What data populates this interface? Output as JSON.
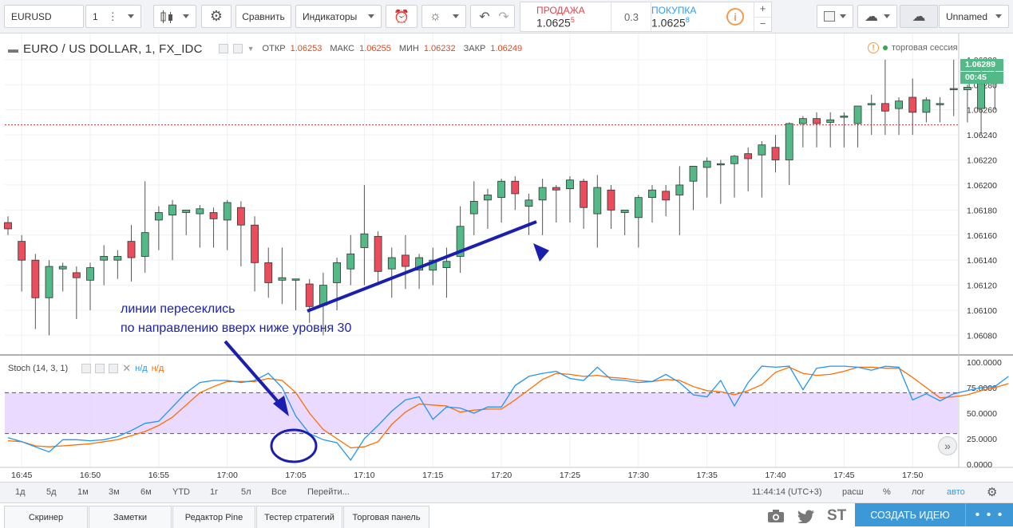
{
  "toolbar": {
    "symbol": "EURUSD",
    "interval": "1",
    "compare_label": "Сравнить",
    "indicators_label": "Индикаторы",
    "layout_name": "Unnamed"
  },
  "trade": {
    "sell_label": "ПРОДАЖА",
    "sell_price": "1.0625",
    "sell_sup": "5",
    "spread": "0.3",
    "buy_label": "ПОКУПКА",
    "buy_price": "1.0625",
    "buy_sup": "8",
    "colors": {
      "sell": "#e5434a",
      "buy": "#2a9df4"
    }
  },
  "legend": {
    "title": "EURO / US DOLLAR, 1, FX_IDC",
    "open_label": "ОТКР",
    "open": "1.06253",
    "high_label": "МАКС",
    "high": "1.06255",
    "low_label": "МИН",
    "low": "1.06232",
    "close_label": "ЗАКР",
    "close": "1.06249",
    "session_label": "торговая сессия"
  },
  "price_axis": {
    "ticks": [
      "1.06300",
      "1.06280",
      "1.06260",
      "1.06240",
      "1.06220",
      "1.06200",
      "1.06180",
      "1.06160",
      "1.06140",
      "1.06120",
      "1.06100",
      "1.06080"
    ],
    "last_price": "1.06289",
    "countdown": "00:45"
  },
  "stoch": {
    "name": "Stoch (14, 3, 1)",
    "k_value": "н/д",
    "d_value": "н/д",
    "ticks": [
      "100.0000",
      "75.0000",
      "50.0000",
      "25.0000",
      "0.0000"
    ]
  },
  "time_axis": {
    "ticks": [
      "16:45",
      "16:50",
      "16:55",
      "17:00",
      "17:05",
      "17:10",
      "17:15",
      "17:20",
      "17:25",
      "17:30",
      "17:35",
      "17:40",
      "17:45",
      "17:50"
    ]
  },
  "annotation": {
    "line1": "линии пересеклись",
    "line2": "по направлению вверх ниже уровня 30"
  },
  "range_bar": {
    "ranges": [
      "1д",
      "5д",
      "1м",
      "3м",
      "6м",
      "YTD",
      "1г",
      "5л",
      "Все"
    ],
    "goto": "Перейти...",
    "clock": "11:44:14 (UTC+3)",
    "options": [
      "расш",
      "%",
      "лог",
      "авто"
    ]
  },
  "bottom": {
    "tabs": [
      "Скринер",
      "Заметки",
      "Редактор Pine",
      "Тестер стратегий",
      "Торговая панель"
    ],
    "st": "ST",
    "create_idea": "СОЗДАТЬ ИДЕЮ",
    "more": "• • •"
  },
  "chart_data": {
    "type": "candlestick",
    "x_start": "16:44",
    "interval_minutes": 1,
    "candles": [
      [
        1.0617,
        1.06175,
        1.0616,
        1.06165
      ],
      [
        1.06155,
        1.0616,
        1.06115,
        1.0614
      ],
      [
        1.0614,
        1.06145,
        1.06085,
        1.0611
      ],
      [
        1.0611,
        1.0614,
        1.0608,
        1.06135
      ],
      [
        1.06133,
        1.06138,
        1.06115,
        1.06135
      ],
      [
        1.0613,
        1.06135,
        1.06093,
        1.06126
      ],
      [
        1.06124,
        1.06138,
        1.061,
        1.06134
      ],
      [
        1.0614,
        1.06152,
        1.0612,
        1.06143
      ],
      [
        1.0614,
        1.06148,
        1.06125,
        1.06143
      ],
      [
        1.06155,
        1.06168,
        1.06123,
        1.06142
      ],
      [
        1.06143,
        1.06203,
        1.0613,
        1.06162
      ],
      [
        1.06172,
        1.06183,
        1.06148,
        1.06178
      ],
      [
        1.06176,
        1.06188,
        1.0614,
        1.06184
      ],
      [
        1.06178,
        1.0618,
        1.0616,
        1.0618
      ],
      [
        1.06177,
        1.06184,
        1.0615,
        1.06181
      ],
      [
        1.06178,
        1.06182,
        1.0615,
        1.06173
      ],
      [
        1.06172,
        1.06188,
        1.06148,
        1.06186
      ],
      [
        1.06182,
        1.06187,
        1.06135,
        1.06168
      ],
      [
        1.06168,
        1.06175,
        1.06115,
        1.06138
      ],
      [
        1.06138,
        1.0615,
        1.0611,
        1.06122
      ],
      [
        1.06124,
        1.0615,
        1.06105,
        1.06126
      ],
      [
        1.06124,
        1.06125,
        1.061,
        1.06125
      ],
      [
        1.06121,
        1.06125,
        1.0609,
        1.06103
      ],
      [
        1.06104,
        1.0613,
        1.0608,
        1.0612
      ],
      [
        1.06122,
        1.06142,
        1.061,
        1.06138
      ],
      [
        1.06133,
        1.0616,
        1.0612,
        1.06145
      ],
      [
        1.0615,
        1.062,
        1.0612,
        1.06161
      ],
      [
        1.06159,
        1.06163,
        1.0612,
        1.06131
      ],
      [
        1.06133,
        1.0615,
        1.0611,
        1.06142
      ],
      [
        1.06144,
        1.0616,
        1.06117,
        1.06135
      ],
      [
        1.06132,
        1.06145,
        1.06117,
        1.06142
      ],
      [
        1.06132,
        1.0615,
        1.0612,
        1.0614
      ],
      [
        1.06134,
        1.0615,
        1.0611,
        1.06139
      ],
      [
        1.06143,
        1.06183,
        1.0613,
        1.06167
      ],
      [
        1.06177,
        1.06203,
        1.0616,
        1.06187
      ],
      [
        1.06188,
        1.06197,
        1.06165,
        1.06192
      ],
      [
        1.0619,
        1.06205,
        1.0617,
        1.06203
      ],
      [
        1.06203,
        1.06207,
        1.0618,
        1.06193
      ],
      [
        1.06183,
        1.06193,
        1.0616,
        1.06188
      ],
      [
        1.06188,
        1.06205,
        1.0616,
        1.06198
      ],
      [
        1.06198,
        1.062,
        1.0617,
        1.06196
      ],
      [
        1.06197,
        1.06207,
        1.0617,
        1.06204
      ],
      [
        1.06203,
        1.06205,
        1.06165,
        1.06182
      ],
      [
        1.06177,
        1.06208,
        1.0615,
        1.06198
      ],
      [
        1.06196,
        1.062,
        1.06165,
        1.0618
      ],
      [
        1.06178,
        1.0618,
        1.0616,
        1.0618
      ],
      [
        1.06174,
        1.06192,
        1.0615,
        1.0619
      ],
      [
        1.0619,
        1.062,
        1.0617,
        1.06196
      ],
      [
        1.06195,
        1.062,
        1.06175,
        1.06188
      ],
      [
        1.06192,
        1.06215,
        1.0616,
        1.062
      ],
      [
        1.06203,
        1.06215,
        1.0618,
        1.06215
      ],
      [
        1.06214,
        1.06222,
        1.0619,
        1.06219
      ],
      [
        1.06216,
        1.0622,
        1.06185,
        1.06217
      ],
      [
        1.06217,
        1.06224,
        1.0619,
        1.06223
      ],
      [
        1.06225,
        1.0623,
        1.06195,
        1.06221
      ],
      [
        1.06224,
        1.06235,
        1.0619,
        1.06232
      ],
      [
        1.0623,
        1.0624,
        1.0621,
        1.0622
      ],
      [
        1.0622,
        1.0625,
        1.062,
        1.06249
      ],
      [
        1.06249,
        1.06255,
        1.0623,
        1.06253
      ],
      [
        1.06253,
        1.06258,
        1.0623,
        1.06249
      ],
      [
        1.0625,
        1.06258,
        1.0623,
        1.06252
      ],
      [
        1.06254,
        1.06258,
        1.0623,
        1.06255
      ],
      [
        1.06249,
        1.06262,
        1.0623,
        1.06263
      ],
      [
        1.06264,
        1.06272,
        1.0624,
        1.06265
      ],
      [
        1.06265,
        1.063,
        1.0624,
        1.06259
      ],
      [
        1.06261,
        1.0627,
        1.0624,
        1.06267
      ],
      [
        1.0627,
        1.06285,
        1.0624,
        1.06258
      ],
      [
        1.06258,
        1.0627,
        1.0625,
        1.06268
      ],
      [
        1.06265,
        1.0627,
        1.0625,
        1.06265
      ],
      [
        1.06276,
        1.063,
        1.06255,
        1.06277
      ],
      [
        1.06276,
        1.0628,
        1.0625,
        1.06278
      ],
      [
        1.06261,
        1.063,
        1.0624,
        1.06281
      ],
      [
        1.06281,
        1.06295,
        1.0626,
        1.06289
      ]
    ],
    "stoch_k": [
      26,
      22,
      17,
      12,
      24,
      24,
      23,
      24,
      27,
      33,
      40,
      42,
      56,
      70,
      80,
      82,
      82,
      80,
      82,
      89,
      75,
      47,
      30,
      24,
      21,
      4,
      25,
      38,
      52,
      63,
      66,
      44,
      56,
      55,
      50,
      56,
      56,
      77,
      86,
      89,
      91,
      84,
      82,
      95,
      83,
      82,
      80,
      81,
      88,
      80,
      68,
      66,
      82,
      57,
      80,
      96,
      95,
      96,
      73,
      94,
      96,
      96,
      95,
      92,
      96,
      95,
      63,
      69,
      62,
      69,
      72,
      75,
      76,
      86
    ],
    "stoch_d": [
      23,
      22,
      18,
      17,
      18,
      19,
      20,
      22,
      24,
      28,
      32,
      38,
      46,
      58,
      70,
      76,
      81,
      81,
      81,
      84,
      82,
      70,
      50,
      34,
      25,
      16,
      17,
      22,
      39,
      51,
      59,
      58,
      57,
      51,
      53,
      54,
      54,
      63,
      73,
      83,
      89,
      88,
      86,
      87,
      85,
      84,
      82,
      81,
      83,
      82,
      76,
      72,
      71,
      68,
      72,
      78,
      90,
      95,
      89,
      87,
      88,
      91,
      95,
      95,
      94,
      94,
      85,
      75,
      65,
      66,
      68,
      72,
      75,
      79
    ],
    "stoch_levels": [
      30,
      70
    ],
    "price_range": [
      1.06065,
      1.06312
    ],
    "stoch_range": [
      0,
      100
    ],
    "colors": {
      "up": "#53b987",
      "down": "#eb4d5c",
      "k": "#2196f3",
      "d": "#ff6d00",
      "band": "#e6d3ff",
      "arrow": "#1a1fb0"
    }
  }
}
